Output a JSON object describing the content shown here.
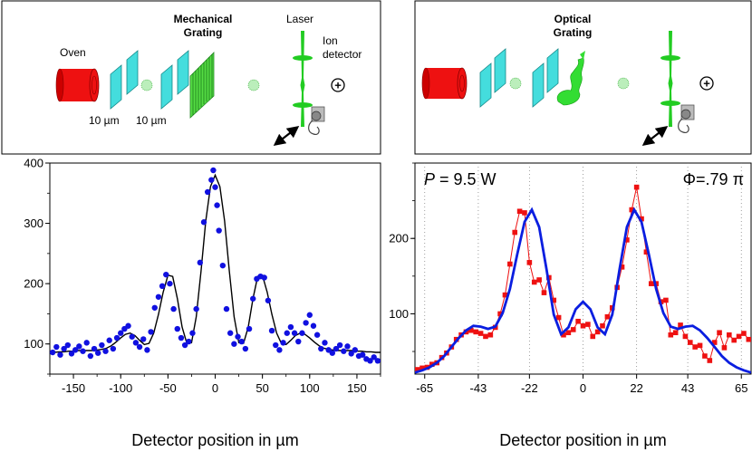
{
  "chart_data": [
    {
      "type": "scatter",
      "panel": "left",
      "title": "",
      "xlabel": "Detector position in µm",
      "ylabel": "",
      "xlim": [
        -175,
        175
      ],
      "ylim": [
        50,
        400
      ],
      "x_ticks": [
        -150,
        -100,
        -50,
        0,
        50,
        100,
        150
      ],
      "x_tick_labels": [
        "-150",
        "-100",
        "-50",
        "0",
        "50",
        "100",
        "150"
      ],
      "y_ticks": [
        100,
        200,
        300,
        400
      ],
      "y_tick_labels": [
        "100",
        "200",
        "300",
        "400"
      ],
      "grid": false,
      "marker_color": "#1010e0",
      "fit_color": "#000000",
      "series": [
        {
          "name": "measured counts",
          "style": "markers",
          "x": [
            -172,
            -168,
            -164,
            -160,
            -156,
            -152,
            -148,
            -144,
            -140,
            -136,
            -132,
            -128,
            -124,
            -120,
            -116,
            -112,
            -108,
            -104,
            -100,
            -96,
            -92,
            -88,
            -84,
            -80,
            -76,
            -72,
            -68,
            -64,
            -60,
            -56,
            -52,
            -48,
            -44,
            -40,
            -36,
            -32,
            -28,
            -24,
            -20,
            -16,
            -12,
            -8,
            -4,
            -2,
            0,
            2,
            4,
            8,
            12,
            16,
            20,
            24,
            28,
            32,
            36,
            40,
            44,
            48,
            52,
            56,
            60,
            64,
            68,
            72,
            76,
            80,
            84,
            88,
            92,
            96,
            100,
            104,
            108,
            112,
            116,
            120,
            124,
            128,
            132,
            136,
            140,
            144,
            148,
            152,
            156,
            160,
            164,
            168,
            172
          ],
          "y": [
            86,
            95,
            82,
            92,
            98,
            84,
            90,
            96,
            88,
            102,
            80,
            92,
            85,
            98,
            88,
            106,
            92,
            110,
            118,
            125,
            130,
            112,
            102,
            95,
            108,
            90,
            120,
            160,
            178,
            196,
            215,
            200,
            158,
            125,
            110,
            98,
            104,
            118,
            158,
            235,
            302,
            352,
            372,
            388,
            360,
            330,
            288,
            230,
            158,
            118,
            100,
            112,
            104,
            92,
            125,
            175,
            208,
            212,
            210,
            172,
            122,
            98,
            90,
            102,
            118,
            128,
            118,
            104,
            118,
            135,
            148,
            130,
            115,
            92,
            102,
            90,
            85,
            92,
            98,
            88,
            96,
            84,
            90,
            80,
            82,
            75,
            72,
            78,
            72
          ]
        },
        {
          "name": "fit",
          "style": "line",
          "x": [
            -175,
            -170,
            -165,
            -160,
            -155,
            -150,
            -145,
            -140,
            -135,
            -130,
            -125,
            -120,
            -115,
            -110,
            -105,
            -100,
            -95,
            -90,
            -85,
            -80,
            -75,
            -70,
            -65,
            -60,
            -55,
            -50,
            -45,
            -40,
            -35,
            -30,
            -25,
            -20,
            -15,
            -10,
            -5,
            0,
            5,
            10,
            15,
            20,
            25,
            30,
            35,
            40,
            45,
            50,
            55,
            60,
            65,
            70,
            75,
            80,
            85,
            90,
            95,
            100,
            105,
            110,
            115,
            120,
            125,
            130,
            135,
            140,
            145,
            150,
            155,
            160,
            165,
            170,
            175
          ],
          "y": [
            86,
            86,
            87,
            87,
            88,
            88,
            89,
            89,
            89,
            89,
            90,
            91,
            93,
            97,
            103,
            110,
            116,
            118,
            114,
            106,
            99,
            101,
            118,
            149,
            186,
            214,
            212,
            175,
            128,
            101,
            102,
            145,
            221,
            304,
            361,
            380,
            361,
            304,
            221,
            145,
            102,
            101,
            128,
            175,
            212,
            214,
            186,
            149,
            118,
            101,
            99,
            106,
            114,
            118,
            116,
            110,
            103,
            97,
            93,
            91,
            90,
            89,
            89,
            89,
            89,
            88,
            88,
            87,
            87,
            86,
            86
          ]
        }
      ]
    },
    {
      "type": "line",
      "panel": "right",
      "title": "",
      "xlabel": "Detector position in µm",
      "ylabel": "",
      "xlim": [
        -69,
        69
      ],
      "ylim": [
        20,
        300
      ],
      "x_ticks": [
        -65,
        -43,
        -22,
        0,
        22,
        43,
        65
      ],
      "x_tick_labels": [
        "-65",
        "-43",
        "-22",
        "0",
        "22",
        "43",
        "65"
      ],
      "y_ticks": [
        100,
        200
      ],
      "y_tick_labels": [
        "100",
        "200"
      ],
      "grid": "vertical dotted at x ticks",
      "annotations": [
        {
          "text_italic": "P",
          "text": " = 9.5 W",
          "position": "top-left"
        },
        {
          "text": "Φ=.79 π",
          "position": "top-right"
        }
      ],
      "marker_color": "#ee1111",
      "fit_color": "#0a1ee0",
      "series": [
        {
          "name": "measured counts",
          "style": "markers+line",
          "x": [
            -68,
            -66,
            -64,
            -62,
            -60,
            -58,
            -56,
            -54,
            -52,
            -50,
            -48,
            -46,
            -44,
            -42,
            -40,
            -38,
            -36,
            -34,
            -32,
            -30,
            -28,
            -26,
            -24,
            -22,
            -20,
            -18,
            -16,
            -14,
            -12,
            -10,
            -8,
            -6,
            -4,
            -2,
            0,
            2,
            4,
            6,
            8,
            10,
            12,
            14,
            16,
            18,
            20,
            22,
            24,
            26,
            28,
            30,
            32,
            34,
            36,
            38,
            40,
            42,
            44,
            46,
            48,
            50,
            52,
            54,
            56,
            58,
            60,
            62,
            64,
            66,
            68
          ],
          "y": [
            26,
            28,
            29,
            33,
            35,
            42,
            48,
            56,
            66,
            72,
            76,
            78,
            76,
            74,
            70,
            72,
            82,
            100,
            125,
            166,
            208,
            236,
            234,
            168,
            142,
            145,
            128,
            148,
            118,
            95,
            72,
            75,
            79,
            90,
            84,
            86,
            70,
            76,
            84,
            96,
            108,
            135,
            162,
            198,
            238,
            268,
            226,
            182,
            140,
            140,
            116,
            118,
            72,
            75,
            85,
            70,
            62,
            56,
            58,
            44,
            38,
            62,
            75,
            55,
            72,
            65,
            70,
            74,
            66
          ]
        },
        {
          "name": "fit",
          "style": "line",
          "x": [
            -69,
            -66,
            -63,
            -60,
            -57,
            -54,
            -51,
            -48,
            -45,
            -42,
            -39,
            -36,
            -33,
            -30,
            -27,
            -24,
            -21,
            -18,
            -15,
            -12,
            -9,
            -6,
            -3,
            0,
            3,
            6,
            9,
            12,
            15,
            18,
            21,
            24,
            27,
            30,
            33,
            36,
            39,
            42,
            45,
            48,
            51,
            54,
            57,
            60,
            63,
            66,
            69
          ],
          "y": [
            22,
            25,
            29,
            35,
            44,
            56,
            68,
            78,
            84,
            83,
            80,
            83,
            101,
            133,
            179,
            222,
            238,
            215,
            159,
            99,
            73,
            82,
            106,
            116,
            106,
            82,
            73,
            99,
            159,
            215,
            238,
            222,
            179,
            133,
            101,
            83,
            80,
            83,
            84,
            78,
            68,
            56,
            44,
            35,
            29,
            25,
            22
          ]
        }
      ]
    }
  ],
  "diagram_left": {
    "labels": {
      "oven": "Oven",
      "grating_line1": "Mechanical",
      "grating_line2": "Grating",
      "laser": "Laser",
      "detector_line1": "Ion",
      "detector_line2": "detector",
      "slit1_width": "10 µm",
      "slit2_width": "10 µm",
      "plus_symbol": "+"
    }
  },
  "diagram_right": {
    "labels": {
      "grating_line1": "Optical",
      "grating_line2": "Grating",
      "plus_symbol": "+"
    }
  },
  "colors": {
    "oven_red": "#ee1111",
    "slit_cyan": "#44dddd",
    "grating_green": "#55dd44",
    "laser_green": "#22cc22",
    "left_marker_blue": "#1010e0",
    "right_marker_red": "#ee1111",
    "right_fit_blue": "#0a1ee0"
  }
}
